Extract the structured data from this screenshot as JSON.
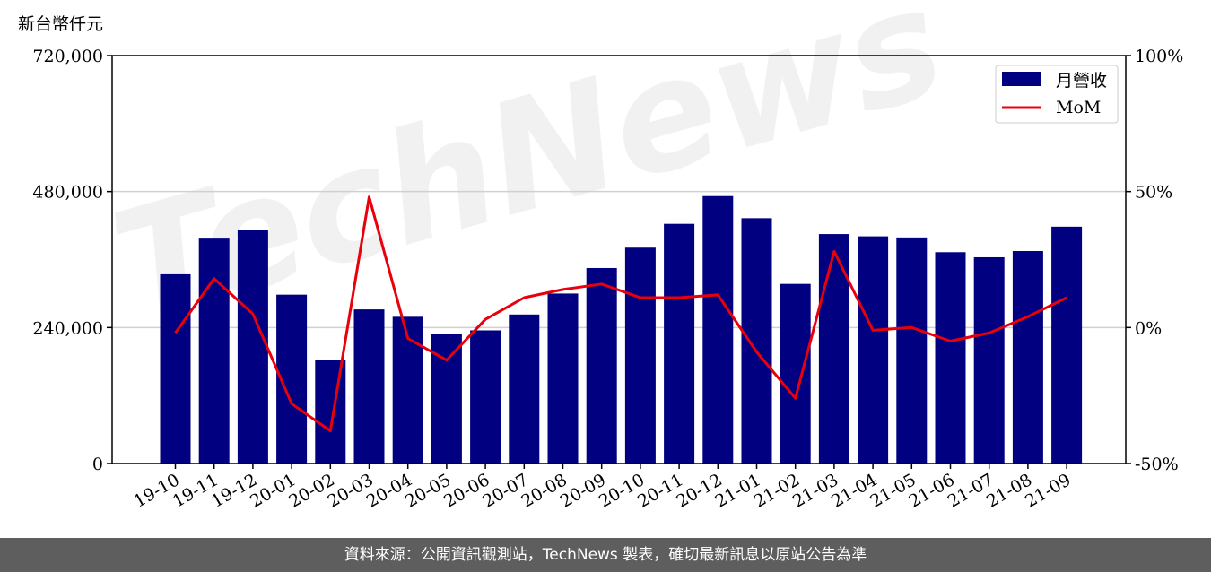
{
  "chart_data": {
    "type": "bar",
    "title": "",
    "ylabel_left": "新台幣仟元",
    "categories": [
      "19-10",
      "19-11",
      "19-12",
      "20-01",
      "20-02",
      "20-03",
      "20-04",
      "20-05",
      "20-06",
      "20-07",
      "20-08",
      "20-09",
      "20-10",
      "20-11",
      "20-12",
      "21-01",
      "21-02",
      "21-03",
      "21-04",
      "21-05",
      "21-06",
      "21-07",
      "21-08",
      "21-09"
    ],
    "series": [
      {
        "name": "月營收",
        "type": "bar",
        "axis": "left",
        "color": "#000080",
        "values": [
          334000,
          397000,
          413000,
          298000,
          183000,
          272000,
          259000,
          229000,
          235000,
          263000,
          300000,
          345000,
          381000,
          423000,
          472000,
          433000,
          317000,
          405000,
          401000,
          399000,
          373000,
          364000,
          375000,
          418000
        ]
      },
      {
        "name": "MoM",
        "type": "line",
        "axis": "right",
        "color": "#e8000b",
        "values": [
          -2,
          18,
          5,
          -28,
          -38,
          48,
          -4,
          -12,
          3,
          11,
          14,
          16,
          11,
          11,
          12,
          -9,
          -26,
          28,
          -1,
          0,
          -5,
          -2,
          4,
          11
        ]
      }
    ],
    "y_left": {
      "min": 0,
      "max": 720000,
      "ticks": [
        "0",
        "240,000",
        "480,000",
        "720,000"
      ],
      "tick_values": [
        0,
        240000,
        480000,
        720000
      ]
    },
    "y_right": {
      "min": -50,
      "max": 100,
      "ticks": [
        "-50%",
        "0%",
        "50%",
        "100%"
      ],
      "tick_values": [
        -50,
        0,
        50,
        100
      ]
    },
    "grid": "horizontal",
    "legend": "top-right",
    "watermark": "TechNews"
  },
  "footer": {
    "text": "資料來源：公開資訊觀測站，TechNews 製表，確切最新訊息以原站公告為準"
  }
}
